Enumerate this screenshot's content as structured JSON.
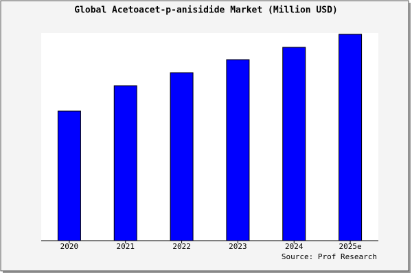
{
  "chart_data": {
    "type": "bar",
    "title": "Global Acetoacet-p-anisidide Market (Million USD)",
    "categories": [
      "2020",
      "2021",
      "2022",
      "2023",
      "2024",
      "2025e"
    ],
    "values": [
      189,
      226,
      245,
      264,
      282,
      301
    ],
    "color": "#0000ff",
    "source": "Source: Prof Research"
  }
}
